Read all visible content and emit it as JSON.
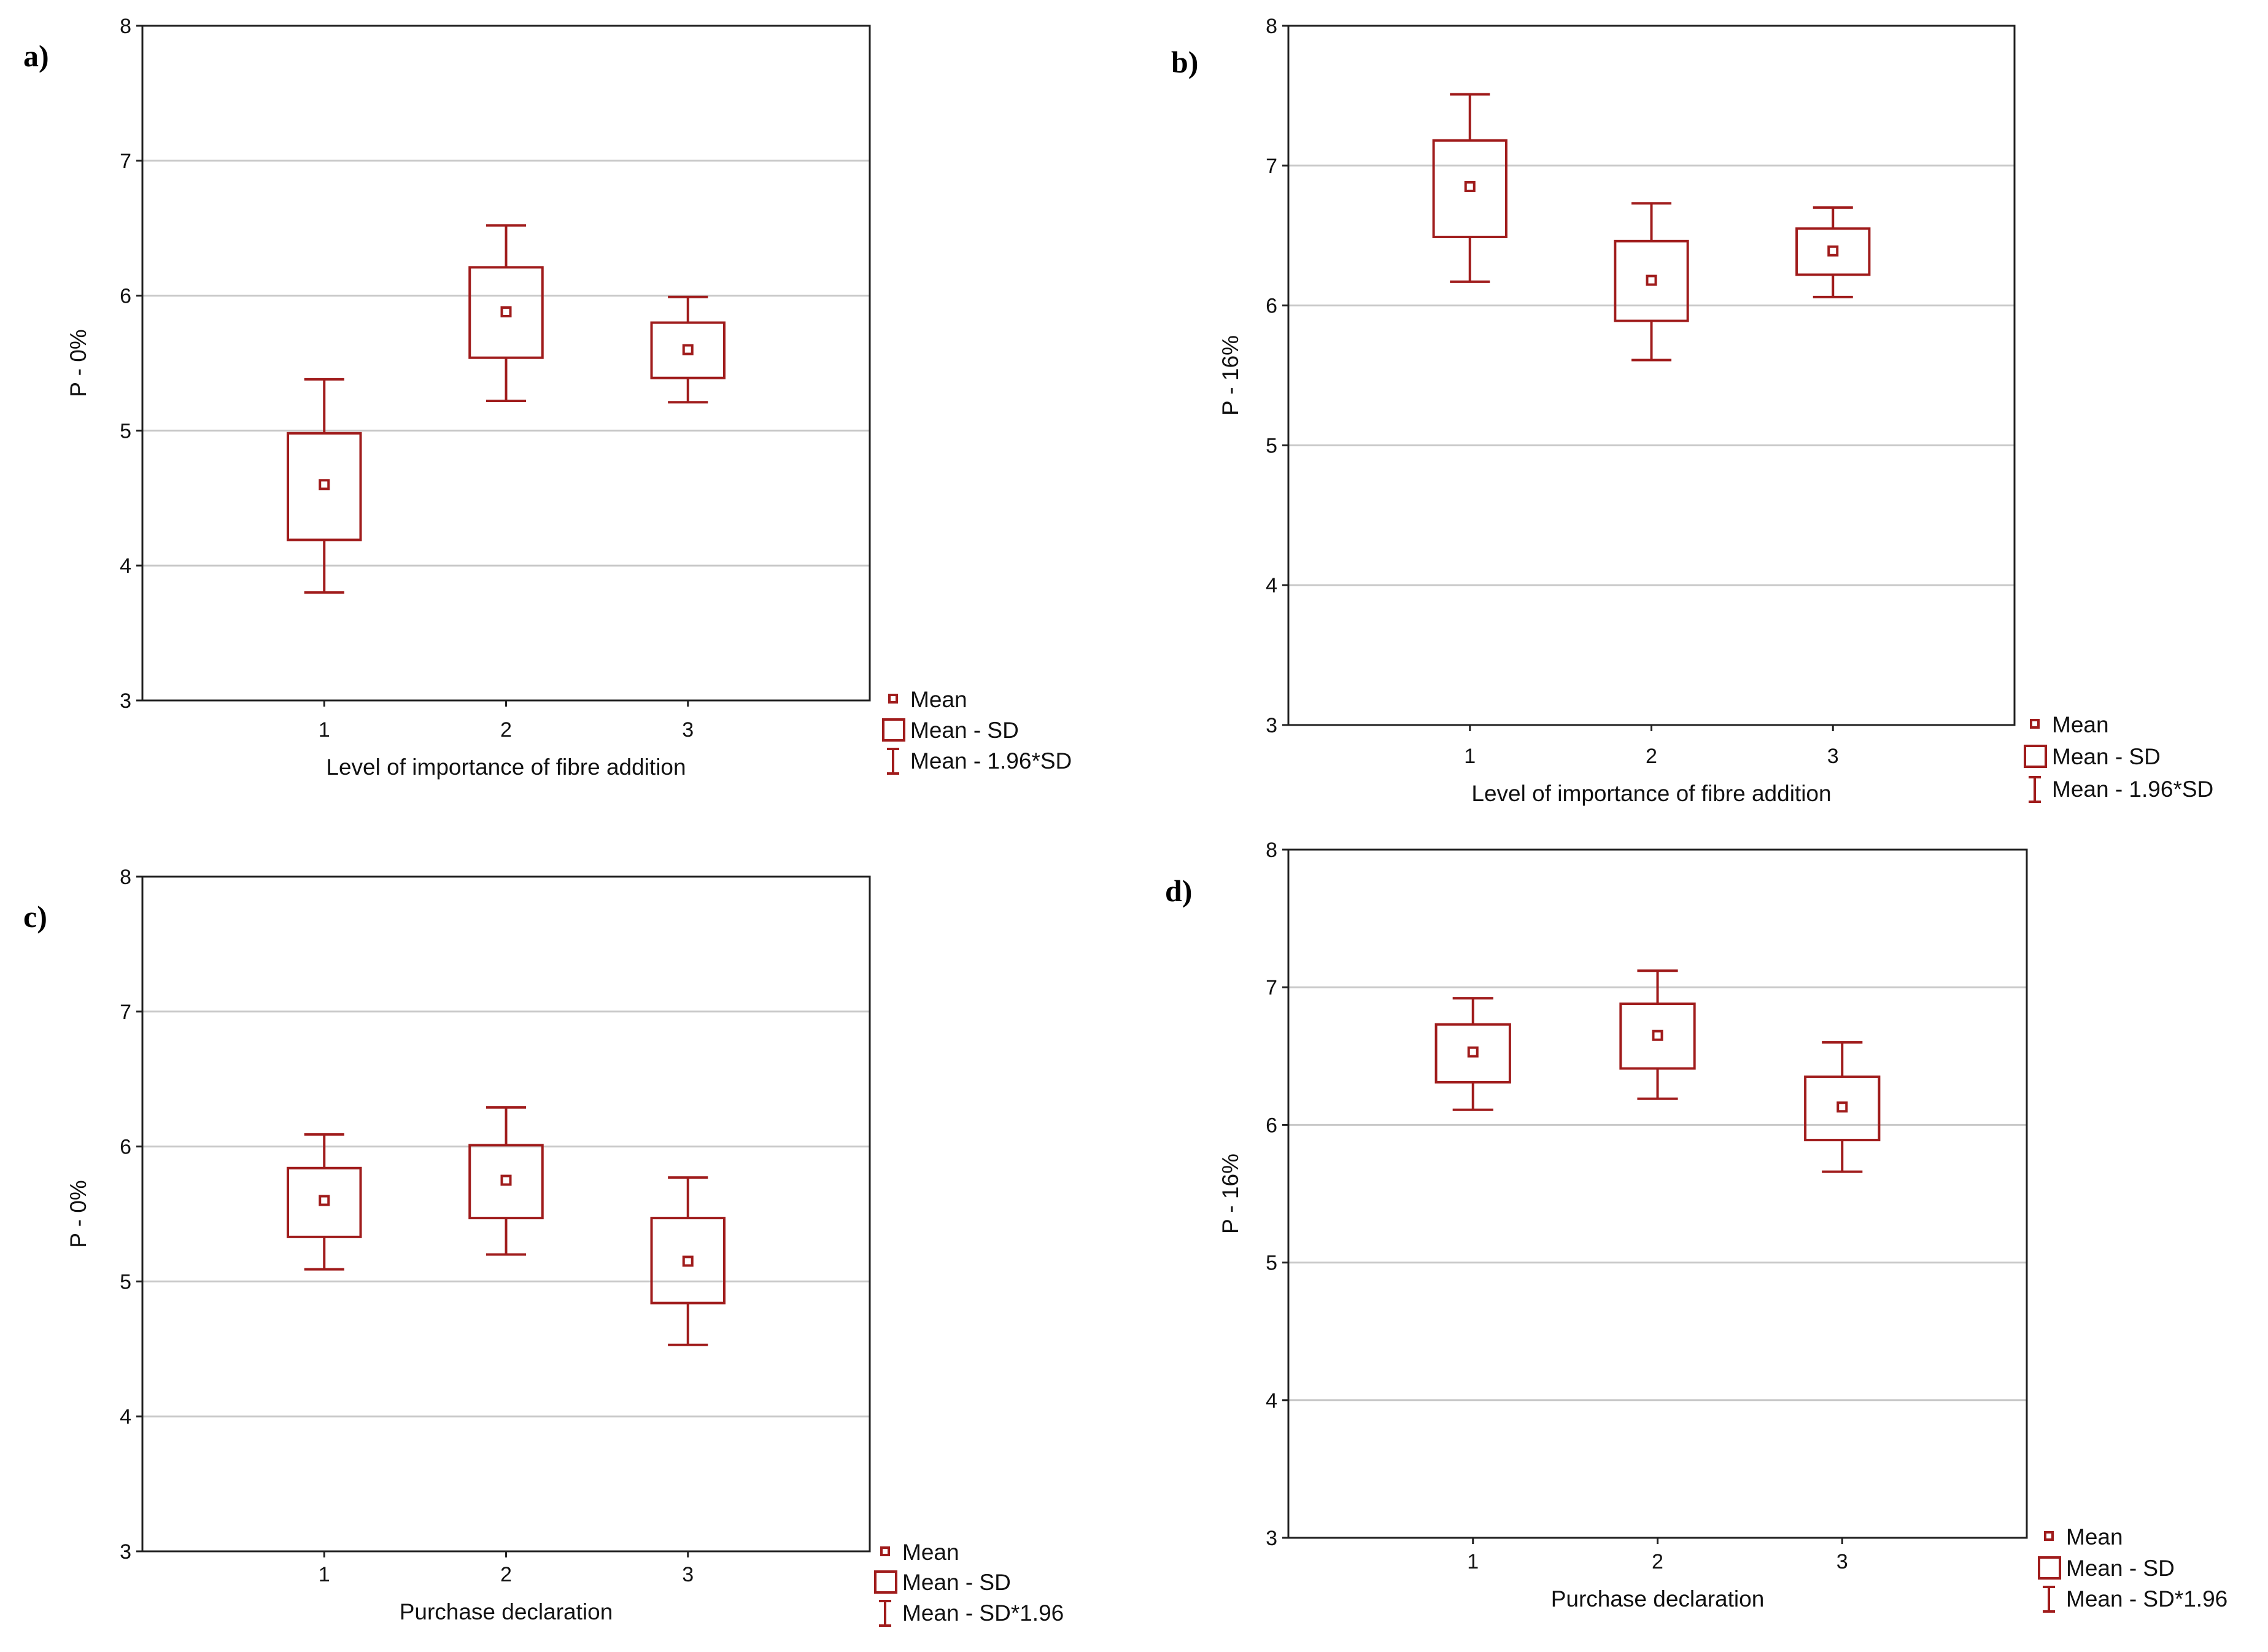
{
  "colors": {
    "mark": "#a01c1c",
    "grid": "#c8c8c8",
    "frame": "#202020"
  },
  "chart_data": [
    {
      "panel": "a)",
      "type": "box",
      "ylabel": "P - 0%",
      "xlabel": "Level of importance of fibre addition",
      "categories": [
        "1",
        "2",
        "3"
      ],
      "ylim": [
        3,
        8
      ],
      "yticks": [
        "3",
        "4",
        "5",
        "6",
        "7",
        "8"
      ],
      "mean": [
        4.6,
        5.88,
        5.6
      ],
      "sd_low": [
        4.19,
        5.54,
        5.39
      ],
      "sd_high": [
        4.98,
        6.21,
        5.8
      ],
      "ci_low": [
        3.8,
        5.22,
        5.21
      ],
      "ci_high": [
        5.38,
        6.52,
        5.99
      ],
      "legend": [
        "Mean",
        "Mean - SD",
        "Mean - 1.96*SD"
      ]
    },
    {
      "panel": "b)",
      "type": "box",
      "ylabel": "P - 16%",
      "xlabel": "Level of importance of fibre addition",
      "categories": [
        "1",
        "2",
        "3"
      ],
      "ylim": [
        3,
        8
      ],
      "yticks": [
        "3",
        "4",
        "5",
        "6",
        "7",
        "8"
      ],
      "mean": [
        6.85,
        6.18,
        6.39
      ],
      "sd_low": [
        6.49,
        5.89,
        6.22
      ],
      "sd_high": [
        7.18,
        6.46,
        6.55
      ],
      "ci_low": [
        6.17,
        5.61,
        6.06
      ],
      "ci_high": [
        7.51,
        6.73,
        6.7
      ],
      "legend": [
        "Mean",
        "Mean - SD",
        "Mean - 1.96*SD"
      ]
    },
    {
      "panel": "c)",
      "type": "box",
      "ylabel": "P - 0%",
      "xlabel": "Purchase declaration",
      "categories": [
        "1",
        "2",
        "3"
      ],
      "ylim": [
        3,
        8
      ],
      "yticks": [
        "3",
        "4",
        "5",
        "6",
        "7",
        "8"
      ],
      "mean": [
        5.6,
        5.75,
        5.15
      ],
      "sd_low": [
        5.33,
        5.47,
        4.84
      ],
      "sd_high": [
        5.84,
        6.01,
        5.47
      ],
      "ci_low": [
        5.09,
        5.2,
        4.53
      ],
      "ci_high": [
        6.09,
        6.29,
        5.77
      ],
      "legend": [
        "Mean",
        "Mean - SD",
        "Mean - SD*1.96"
      ]
    },
    {
      "panel": "d)",
      "type": "box",
      "ylabel": "P - 16%",
      "xlabel": "Purchase declaration",
      "categories": [
        "1",
        "2",
        "3"
      ],
      "ylim": [
        3,
        8
      ],
      "yticks": [
        "3",
        "4",
        "5",
        "6",
        "7",
        "8"
      ],
      "mean": [
        6.53,
        6.65,
        6.13
      ],
      "sd_low": [
        6.31,
        6.41,
        5.89
      ],
      "sd_high": [
        6.73,
        6.88,
        6.35
      ],
      "ci_low": [
        6.11,
        6.19,
        5.66
      ],
      "ci_high": [
        6.92,
        7.12,
        6.6
      ],
      "legend": [
        "Mean",
        "Mean - SD",
        "Mean - SD*1.96"
      ]
    }
  ]
}
